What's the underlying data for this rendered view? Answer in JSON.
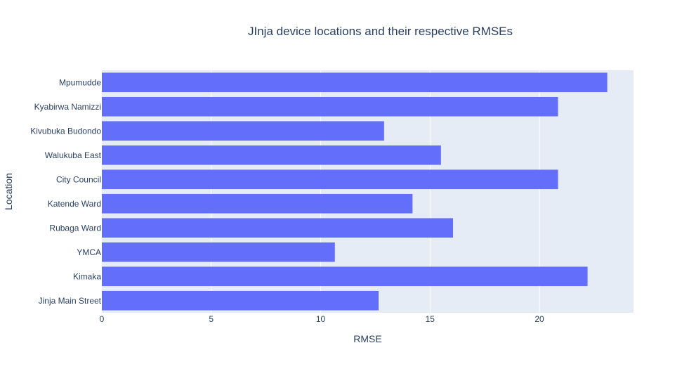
{
  "chart_data": {
    "type": "bar",
    "orientation": "horizontal",
    "title": "JInja device locations and their respective RMSEs",
    "xlabel": "RMSE",
    "ylabel": "Location",
    "categories": [
      "Jinja Main Street",
      "Kimaka",
      "YMCA",
      "Rubaga Ward",
      "Katende Ward",
      "City Council",
      "Walukuba East",
      "Kivubuka Budondo",
      "Kyabirwa Namizzi",
      "Mpumudde"
    ],
    "values": [
      12.65,
      22.2,
      10.65,
      16.05,
      14.2,
      20.85,
      15.5,
      12.9,
      20.85,
      23.1
    ],
    "xlim": [
      0,
      24.3
    ],
    "xticks": [
      0,
      5,
      10,
      15,
      20
    ],
    "grid": true,
    "bar_color": "#636efa",
    "plot_bg": "#e5ecf6",
    "legend": "none"
  }
}
